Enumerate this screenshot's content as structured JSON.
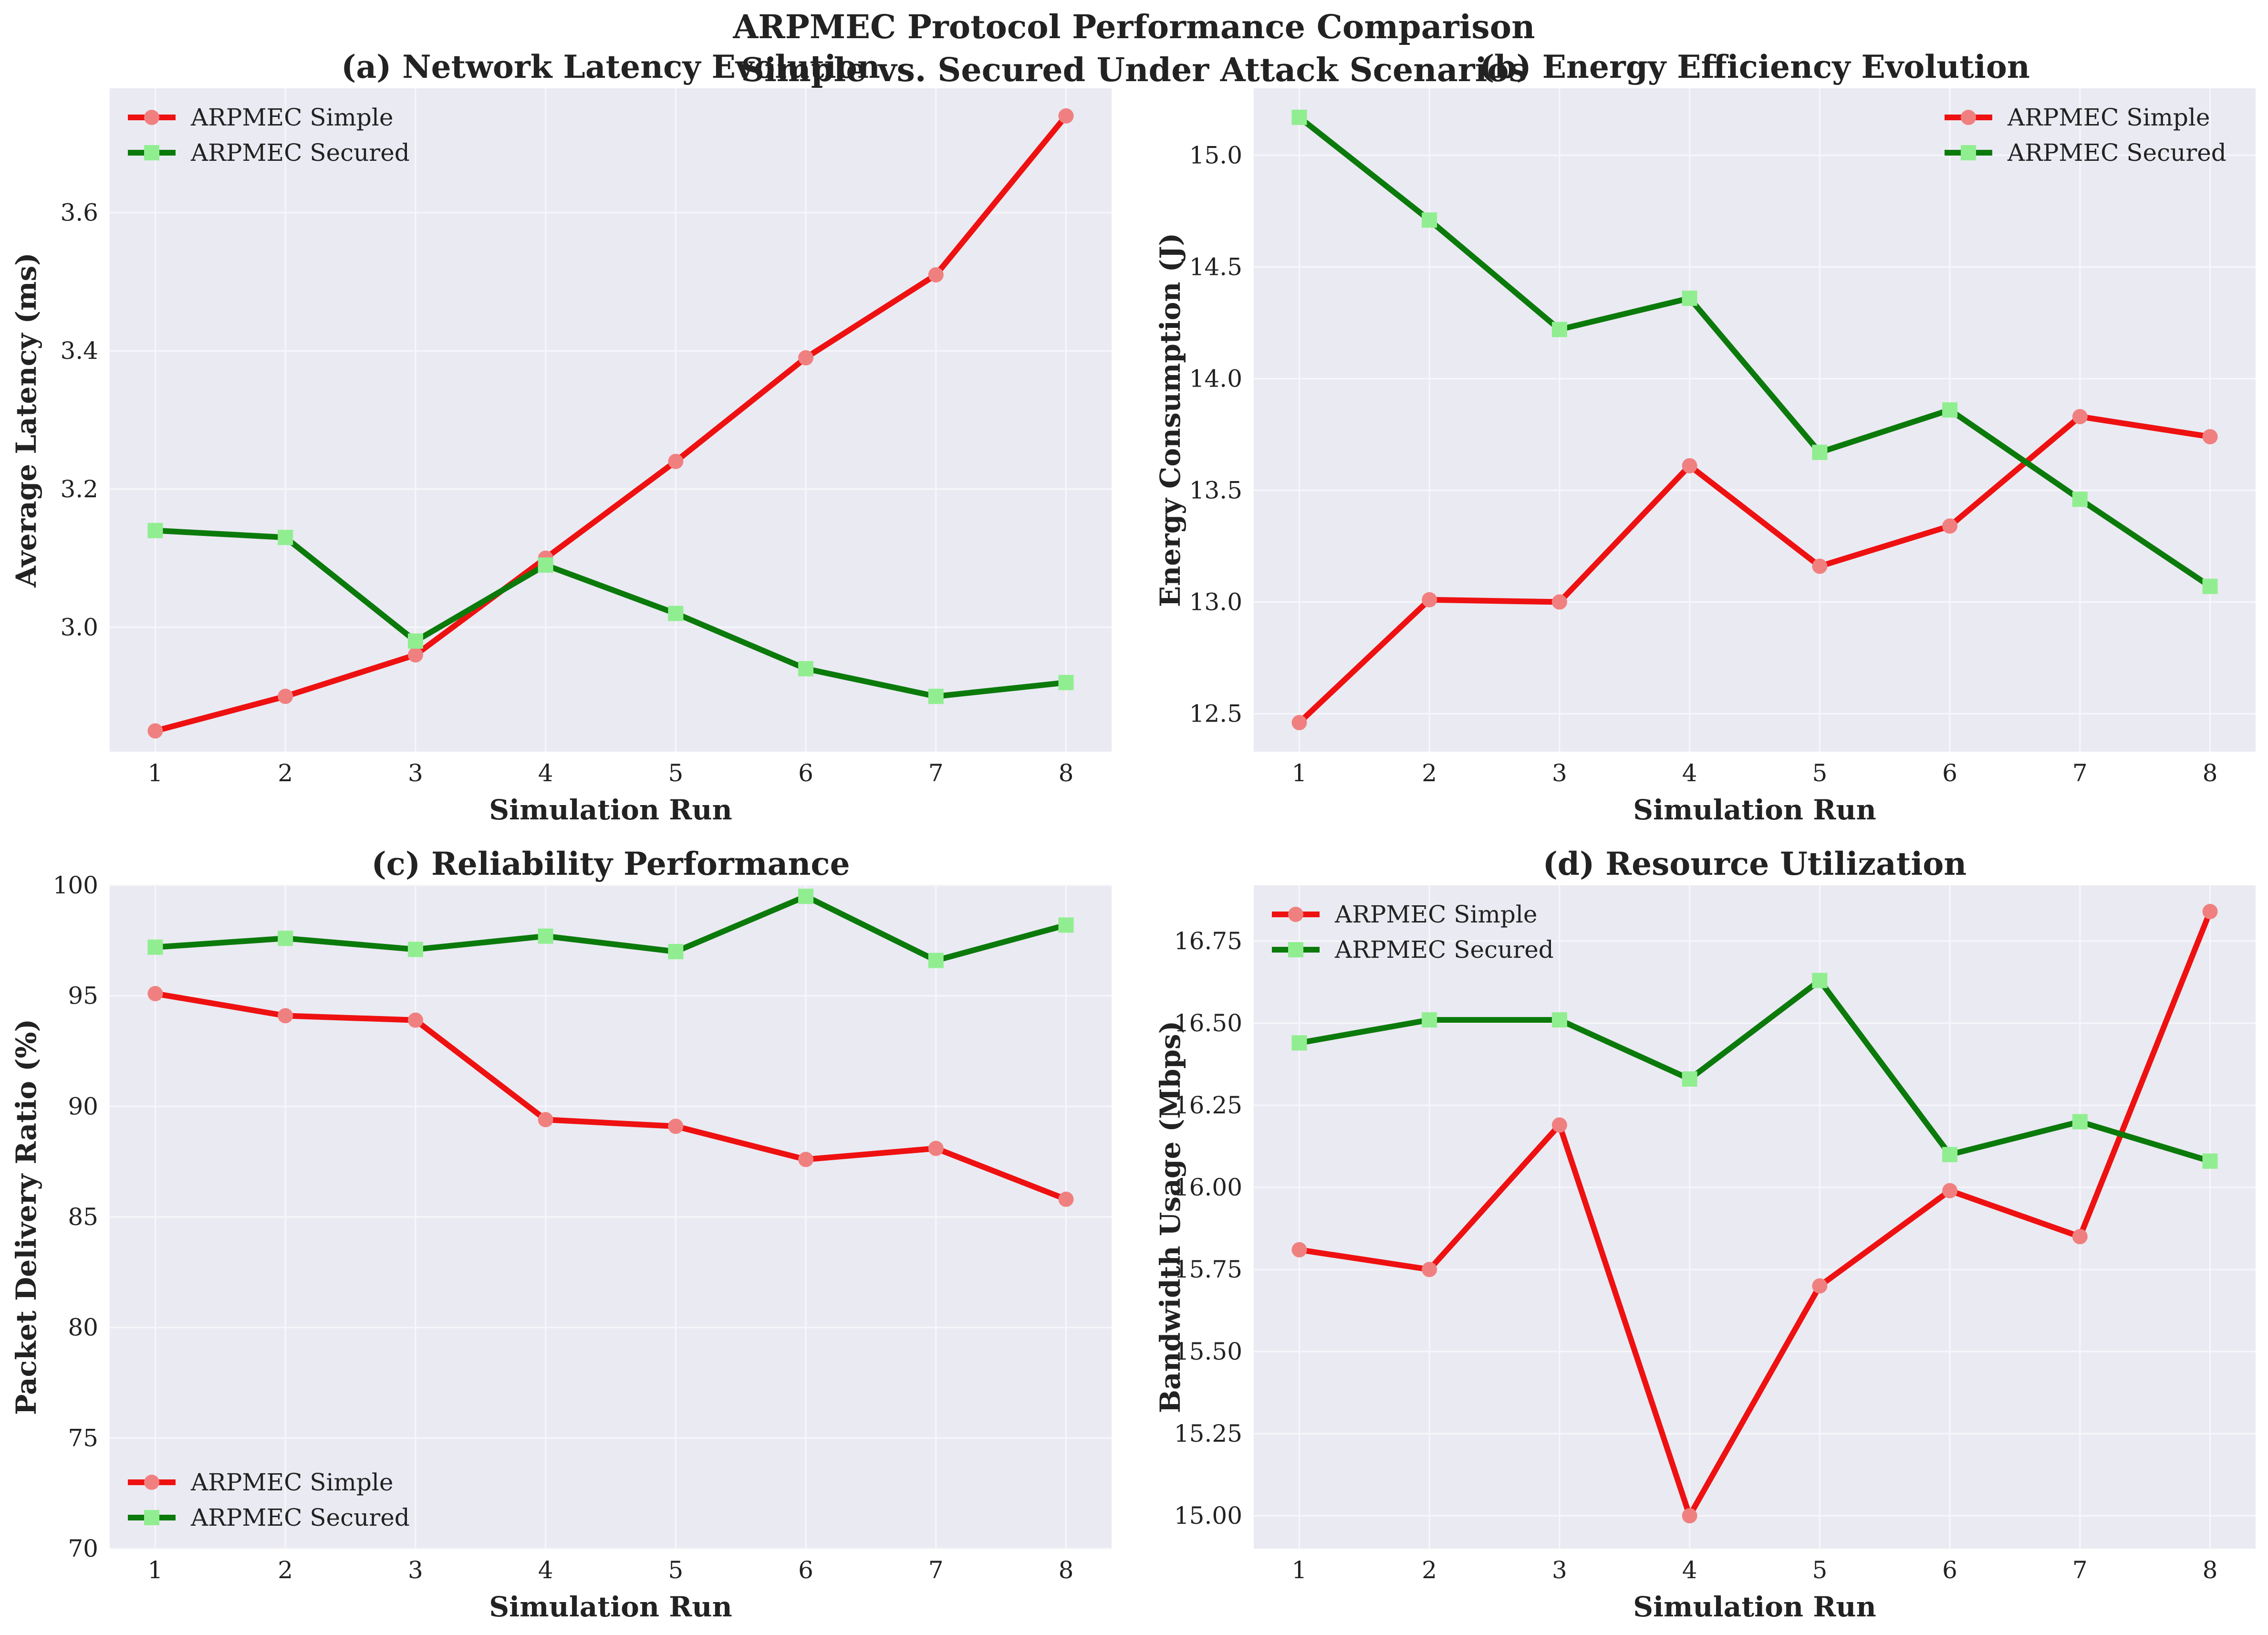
{
  "figure": {
    "title_line1": "ARPMEC Protocol Performance Comparison",
    "title_line2": "Simple vs. Secured Under Attack Scenarios"
  },
  "colors": {
    "panel_bg": "#EAEAF2",
    "grid": "#F7F7FB",
    "simple_line": "#EE1111",
    "simple_marker": "#F08080",
    "secured_line": "#0B7A0B",
    "secured_marker": "#90EE90"
  },
  "chart_data": [
    {
      "type": "line",
      "title": "(a) Network Latency Evolution",
      "xlabel": "Simulation Run",
      "ylabel": "Average Latency (ms)",
      "x": [
        1,
        2,
        3,
        4,
        5,
        6,
        7,
        8
      ],
      "xlim": [
        0.65,
        8.35
      ],
      "ylim": [
        2.82,
        3.78
      ],
      "yticks": [
        3.0,
        3.2,
        3.4,
        3.6
      ],
      "ytick_labels": [
        "3.0",
        "3.2",
        "3.4",
        "3.6"
      ],
      "legend_loc": "upper left",
      "series": [
        {
          "name": "ARPMEC Simple",
          "values": [
            2.85,
            2.9,
            2.96,
            3.1,
            3.24,
            3.39,
            3.51,
            3.74
          ]
        },
        {
          "name": "ARPMEC Secured",
          "values": [
            3.14,
            3.13,
            2.98,
            3.09,
            3.02,
            2.94,
            2.9,
            2.92
          ]
        }
      ]
    },
    {
      "type": "line",
      "title": "(b) Energy Efficiency Evolution",
      "xlabel": "Simulation Run",
      "ylabel": "Energy Consumption (J)",
      "x": [
        1,
        2,
        3,
        4,
        5,
        6,
        7,
        8
      ],
      "xlim": [
        0.65,
        8.35
      ],
      "ylim": [
        12.33,
        15.3
      ],
      "yticks": [
        12.5,
        13.0,
        13.5,
        14.0,
        14.5,
        15.0
      ],
      "ytick_labels": [
        "12.5",
        "13.0",
        "13.5",
        "14.0",
        "14.5",
        "15.0"
      ],
      "legend_loc": "upper right",
      "series": [
        {
          "name": "ARPMEC Simple",
          "values": [
            12.46,
            13.01,
            13.0,
            13.61,
            13.16,
            13.34,
            13.83,
            13.74
          ]
        },
        {
          "name": "ARPMEC Secured",
          "values": [
            15.17,
            14.71,
            14.22,
            14.36,
            13.67,
            13.86,
            13.46,
            13.07
          ]
        }
      ]
    },
    {
      "type": "line",
      "title": "(c) Reliability Performance",
      "xlabel": "Simulation Run",
      "ylabel": "Packet Delivery Ratio (%)",
      "x": [
        1,
        2,
        3,
        4,
        5,
        6,
        7,
        8
      ],
      "xlim": [
        0.65,
        8.35
      ],
      "ylim": [
        70,
        100
      ],
      "yticks": [
        70,
        75,
        80,
        85,
        90,
        95,
        100
      ],
      "ytick_labels": [
        "70",
        "75",
        "80",
        "85",
        "90",
        "95",
        "100"
      ],
      "legend_loc": "lower left",
      "series": [
        {
          "name": "ARPMEC Simple",
          "values": [
            95.1,
            94.1,
            93.9,
            89.4,
            89.1,
            87.6,
            88.1,
            85.8
          ]
        },
        {
          "name": "ARPMEC Secured",
          "values": [
            97.2,
            97.6,
            97.1,
            97.7,
            97.0,
            99.5,
            96.6,
            98.2
          ]
        }
      ]
    },
    {
      "type": "line",
      "title": "(d) Resource Utilization",
      "xlabel": "Simulation Run",
      "ylabel": "Bandwidth Usage (Mbps)",
      "x": [
        1,
        2,
        3,
        4,
        5,
        6,
        7,
        8
      ],
      "xlim": [
        0.65,
        8.35
      ],
      "ylim": [
        14.9,
        16.92
      ],
      "yticks": [
        15.0,
        15.25,
        15.5,
        15.75,
        16.0,
        16.25,
        16.5,
        16.75
      ],
      "ytick_labels": [
        "15.00",
        "15.25",
        "15.50",
        "15.75",
        "16.00",
        "16.25",
        "16.50",
        "16.75"
      ],
      "legend_loc": "upper left",
      "series": [
        {
          "name": "ARPMEC Simple",
          "values": [
            15.81,
            15.75,
            16.19,
            15.0,
            15.7,
            15.99,
            15.85,
            16.84
          ]
        },
        {
          "name": "ARPMEC Secured",
          "values": [
            16.44,
            16.51,
            16.51,
            16.33,
            16.63,
            16.1,
            16.2,
            16.08
          ]
        }
      ]
    }
  ]
}
